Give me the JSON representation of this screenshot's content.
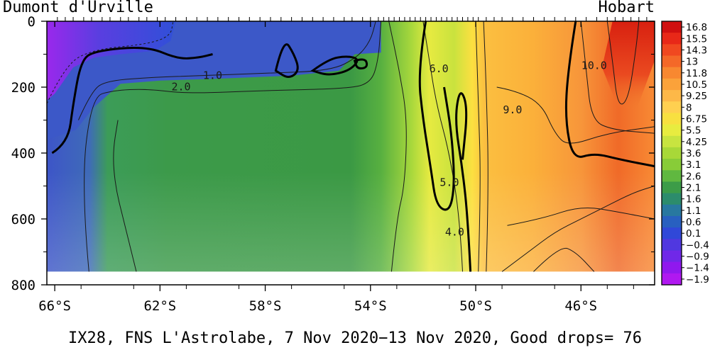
{
  "chart_data": {
    "type": "heatmap",
    "title": "",
    "caption": "IX28, FNS L'Astrolabe,  7 Nov 2020−13 Nov 2020, Good drops= 76",
    "left_label": "Dumont d'Urville",
    "right_label": "Hobart",
    "xlabel": "",
    "ylabel": "",
    "x_ticks": [
      "66°S",
      "62°S",
      "58°S",
      "54°S",
      "50°S",
      "46°S"
    ],
    "x_tick_values": [
      -66,
      -62,
      -58,
      -54,
      -50,
      -46
    ],
    "xlim": [
      -66.3,
      -43.2
    ],
    "y_ticks": [
      "0",
      "200",
      "400",
      "600",
      "800"
    ],
    "y_tick_values": [
      0,
      200,
      400,
      600,
      800
    ],
    "ylim": [
      0,
      800
    ],
    "y_inverted": true,
    "data_depth_max": 760,
    "colorbar": {
      "labels": [
        "16.8",
        "15.5",
        "14.3",
        "13",
        "11.8",
        "10.5",
        "9.25",
        "8",
        "6.75",
        "5.5",
        "4.25",
        "3.6",
        "3.1",
        "2.6",
        "2.1",
        "1.6",
        "1.1",
        "0.6",
        "0.1",
        "−0.4",
        "−0.9",
        "−1.4",
        "−1.9"
      ],
      "colors": [
        "#d01010",
        "#e82818",
        "#f04820",
        "#f46828",
        "#f88830",
        "#fba23a",
        "#fdb848",
        "#ffd050",
        "#f8e040",
        "#e8ec40",
        "#c8e440",
        "#a8d838",
        "#88cc38",
        "#60b840",
        "#3c9c48",
        "#2c8c6c",
        "#2878a0",
        "#2860c0",
        "#3048d8",
        "#5038e0",
        "#7028e8",
        "#9018ee",
        "#b018f0"
      ]
    },
    "contour_labels": [
      {
        "text": "1.0",
        "lat": -60.0,
        "depth": 175
      },
      {
        "text": "2.0",
        "lat": -61.2,
        "depth": 210
      },
      {
        "text": "6.0",
        "lat": -51.4,
        "depth": 155
      },
      {
        "text": "9.0",
        "lat": -48.6,
        "depth": 280
      },
      {
        "text": "10.0",
        "lat": -45.5,
        "depth": 145
      },
      {
        "text": "5.0",
        "lat": -51.0,
        "depth": 500
      },
      {
        "text": "4.0",
        "lat": -50.8,
        "depth": 650
      }
    ]
  }
}
